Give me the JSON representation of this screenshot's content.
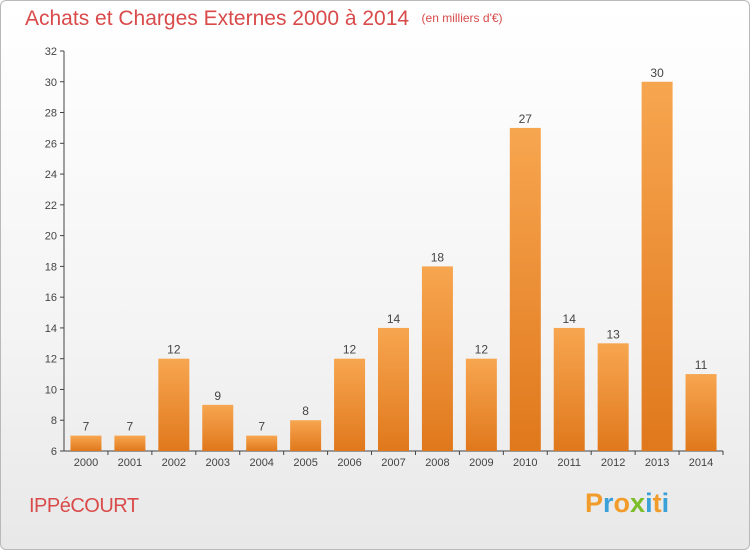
{
  "header": {
    "title": "Achats et Charges Externes 2000 à 2014",
    "unit": "(en milliers d'€)"
  },
  "footer": {
    "place": "IPPéCOURT",
    "logo": "Proxiti",
    "logo_colors": [
      "#f19c2a",
      "#3aa0d8",
      "#f19c2a",
      "#7cbd2a",
      "#3aa0d8",
      "#f19c2a",
      "#3aa0d8"
    ]
  },
  "colors": {
    "bar_light": "#f7a650",
    "bar_dark": "#e0781c",
    "text": "#d94a4a",
    "axis": "#444444"
  },
  "chart_data": {
    "type": "bar",
    "categories": [
      "2000",
      "2001",
      "2002",
      "2003",
      "2004",
      "2005",
      "2006",
      "2007",
      "2008",
      "2009",
      "2010",
      "2011",
      "2012",
      "2013",
      "2014"
    ],
    "values": [
      7,
      7,
      12,
      9,
      7,
      8,
      12,
      14,
      18,
      12,
      27,
      14,
      13,
      30,
      11
    ],
    "ylim": [
      6,
      32
    ],
    "yticks": [
      6,
      8,
      10,
      12,
      14,
      16,
      18,
      20,
      22,
      24,
      26,
      28,
      30,
      32
    ],
    "grid": false,
    "legend": "none"
  }
}
